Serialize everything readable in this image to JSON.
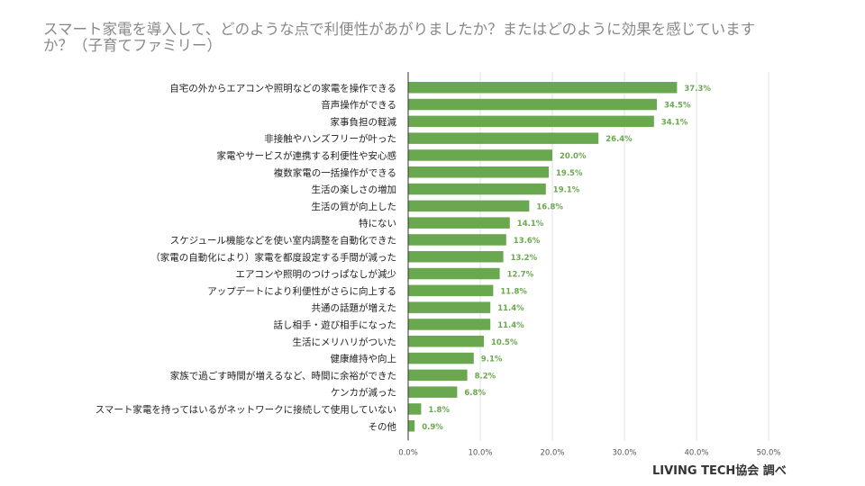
{
  "title": "スマート家電を導入して、どのような点で利便性があがりましたか？またはどのように効果を感じていますか？（子育てファミリー）",
  "source": "LIVING TECH協会 調べ",
  "colors": {
    "bar": "#6aa84f",
    "grid": "#e0e0e0",
    "axis": "#333333"
  },
  "chart_data": {
    "type": "bar",
    "orientation": "horizontal",
    "title": "スマート家電を導入して、どのような点で利便性があがりましたか？またはどのように効果を感じていますか？（子育てファミリー）",
    "categories": [
      "自宅の外からエアコンや照明などの家電を操作できる",
      "音声操作ができる",
      "家事負担の軽減",
      "非接触やハンズフリーが叶った",
      "家電やサービスが連携する利便性や安心感",
      "複数家電の一括操作ができる",
      "生活の楽しさの増加",
      "生活の質が向上した",
      "特にない",
      "スケジュール機能などを使い室内調整を自動化できた",
      "（家電の自動化により）家電を都度設定する手間が減った",
      "エアコンや照明のつけっぱなしが減少",
      "アップデートにより利便性がさらに向上する",
      "共通の話題が増えた",
      "話し相手・遊び相手になった",
      "生活にメリハリがついた",
      "健康維持や向上",
      "家族で過ごす時間が増えるなど、時間に余裕ができた",
      "ケンカが減った",
      "スマート家電を持ってはいるがネットワークに接続して使用していない",
      "その他"
    ],
    "values": [
      37.3,
      34.5,
      34.1,
      26.4,
      20.0,
      19.5,
      19.1,
      16.8,
      14.1,
      13.6,
      13.2,
      12.7,
      11.8,
      11.4,
      11.4,
      10.5,
      9.1,
      8.2,
      6.8,
      1.8,
      0.9
    ],
    "value_labels": [
      "37.3%",
      "34.5%",
      "34.1%",
      "26.4%",
      "20.0%",
      "19.5%",
      "19.1%",
      "16.8%",
      "14.1%",
      "13.6%",
      "13.2%",
      "12.7%",
      "11.8%",
      "11.4%",
      "11.4%",
      "10.5%",
      "9.1%",
      "8.2%",
      "6.8%",
      "1.8%",
      "0.9%"
    ],
    "xticks": [
      0,
      10,
      20,
      30,
      40,
      50
    ],
    "xtick_labels": [
      "0.0%",
      "10.0%",
      "20.0%",
      "30.0%",
      "40.0%",
      "50.0%"
    ],
    "xlim": [
      0,
      50
    ],
    "grid": true,
    "legend": "none"
  }
}
